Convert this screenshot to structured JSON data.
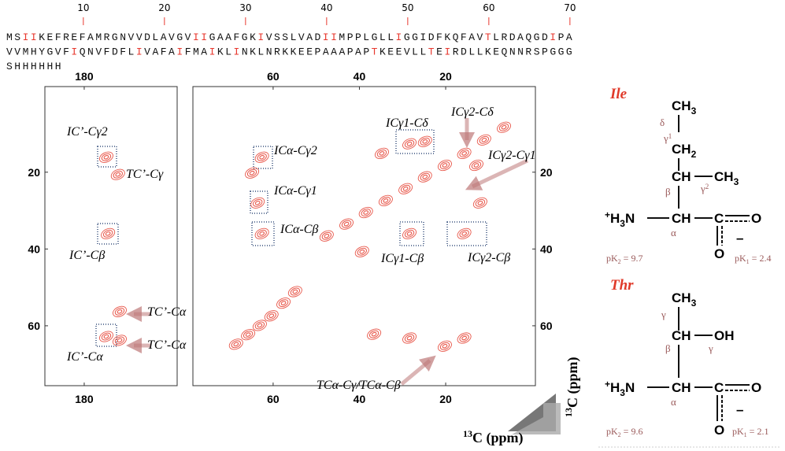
{
  "sequence": {
    "ruler": [
      10,
      20,
      30,
      40,
      50,
      60,
      70
    ],
    "highlight_color": "#e8392f",
    "lines": [
      [
        {
          "t": "MS"
        },
        {
          "t": "II",
          "hl": true
        },
        {
          "t": "KEFREFAMRGNVVDLAVGV"
        },
        {
          "t": "II",
          "hl": true
        },
        {
          "t": "GAAFGK"
        },
        {
          "t": "I",
          "hl": true
        },
        {
          "t": "VSSLVAD"
        },
        {
          "t": "II",
          "hl": true
        },
        {
          "t": "MPPLGLL"
        },
        {
          "t": "I",
          "hl": true
        },
        {
          "t": "GGIDFKQFAV"
        },
        {
          "t": "T",
          "hl": true
        },
        {
          "t": "LRDAQGD"
        },
        {
          "t": "I",
          "hl": true
        },
        {
          "t": "PA"
        }
      ],
      [
        {
          "t": "VVMHYGVF"
        },
        {
          "t": "I",
          "hl": true
        },
        {
          "t": "QNVFDFL"
        },
        {
          "t": "I",
          "hl": true
        },
        {
          "t": "VAFA"
        },
        {
          "t": "I",
          "hl": true
        },
        {
          "t": "FMA"
        },
        {
          "t": "I",
          "hl": true
        },
        {
          "t": "KL"
        },
        {
          "t": "I",
          "hl": true
        },
        {
          "t": "NKLNRKKEEPAAAPAP"
        },
        {
          "t": "T",
          "hl": true
        },
        {
          "t": "KEEVLL"
        },
        {
          "t": "T",
          "hl": true
        },
        {
          "t": "E"
        },
        {
          "t": "I",
          "hl": true
        },
        {
          "t": "RDLLKEQNNRSPGGG"
        }
      ],
      [
        {
          "t": "SHHHHHH"
        }
      ]
    ]
  },
  "spectra": [
    {
      "xlim": [
        189.1,
        158.5
      ],
      "ylim": [
        -2.3,
        75.6
      ],
      "xticks": [
        180
      ],
      "yticks": [
        20,
        40,
        60
      ],
      "peaks": [
        {
          "x": 174.9,
          "y": 16.1
        },
        {
          "x": 172.2,
          "y": 20.6
        },
        {
          "x": 174.5,
          "y": 36
        },
        {
          "x": 171.8,
          "y": 56.3
        },
        {
          "x": 174.9,
          "y": 62.8
        },
        {
          "x": 171.8,
          "y": 63.8
        }
      ],
      "annotations": [
        "IC’-Cγ2",
        "TC’-Cγ",
        "IC’-Cβ",
        "TC’-Cα",
        "TC’-Cα",
        "IC’-Cα"
      ]
    },
    {
      "xlim": [
        78.6,
        -0.8
      ],
      "ylim": [
        -2.3,
        75.6
      ],
      "xticks": [
        60,
        40,
        20
      ],
      "yticks": [
        20,
        40,
        60
      ],
      "peaks": [
        {
          "x": 62.6,
          "y": 16.1
        },
        {
          "x": 64.9,
          "y": 20.2
        },
        {
          "x": 63.6,
          "y": 28
        },
        {
          "x": 62.6,
          "y": 36
        },
        {
          "x": 47.6,
          "y": 36.6
        },
        {
          "x": 43.0,
          "y": 33.5
        },
        {
          "x": 38.5,
          "y": 30.5
        },
        {
          "x": 33.9,
          "y": 27.4
        },
        {
          "x": 29.3,
          "y": 24.3
        },
        {
          "x": 24.8,
          "y": 21.2
        },
        {
          "x": 20.2,
          "y": 18.2
        },
        {
          "x": 15.7,
          "y": 15.1
        },
        {
          "x": 11.1,
          "y": 11.6
        },
        {
          "x": 6.5,
          "y": 8.3
        },
        {
          "x": 68.6,
          "y": 64.8
        },
        {
          "x": 65.8,
          "y": 62.3
        },
        {
          "x": 63.1,
          "y": 59.9
        },
        {
          "x": 60.4,
          "y": 57.4
        },
        {
          "x": 57.6,
          "y": 54.1
        },
        {
          "x": 54.9,
          "y": 51.1
        },
        {
          "x": 34.8,
          "y": 15.1
        },
        {
          "x": 28.4,
          "y": 12.6
        },
        {
          "x": 24.8,
          "y": 12
        },
        {
          "x": 12.9,
          "y": 18.2
        },
        {
          "x": 12,
          "y": 28
        },
        {
          "x": 15.7,
          "y": 36
        },
        {
          "x": 28.4,
          "y": 36
        },
        {
          "x": 39.4,
          "y": 40.7
        },
        {
          "x": 36.6,
          "y": 62.2
        },
        {
          "x": 15.7,
          "y": 63.2
        },
        {
          "x": 20.2,
          "y": 65.3
        },
        {
          "x": 28.4,
          "y": 63.2
        }
      ],
      "annotations": [
        "ICα-Cγ2",
        "ICα-Cγ1",
        "ICα-Cβ",
        "ICγ1-Cδ",
        "ICγ2-Cδ",
        "ICγ2-Cγ1",
        "ICγ1-Cβ",
        "ICγ2-Cβ",
        "TCα-Cγ/TCα-Cβ"
      ]
    }
  ],
  "axis_label": [
    "13",
    "C (ppm)"
  ],
  "ile": {
    "name": "Ile",
    "ch3": [
      "CH",
      "3"
    ],
    "ch2": [
      "CH",
      "2"
    ],
    "ch": "CH",
    "ch3b": [
      "CH",
      "3"
    ],
    "nh3": [
      "+",
      "H",
      "3",
      "N"
    ],
    "ca": "CH",
    "c": "C",
    "o": "O",
    "o2": "O",
    "charge": "–",
    "labels": [
      "δ",
      "γ",
      "1",
      "β",
      "γ",
      "2",
      "α"
    ],
    "pk2": [
      "pK",
      "2",
      " = 9.7"
    ],
    "pk1": [
      "pK",
      "1",
      " = 2.4"
    ]
  },
  "thr": {
    "name": "Thr",
    "ch3": [
      "CH",
      "3"
    ],
    "ch": "CH",
    "oh": "OH",
    "nh3": [
      "+",
      "H",
      "3",
      "N"
    ],
    "ca": "CH",
    "c": "C",
    "o": "O",
    "o2": "O",
    "charge": "–",
    "labels": [
      "γ",
      "β",
      "γ",
      "α"
    ],
    "pk2": [
      "pK",
      "2",
      " = 9.6"
    ],
    "pk1": [
      "pK",
      "1",
      " = 2.1"
    ]
  }
}
